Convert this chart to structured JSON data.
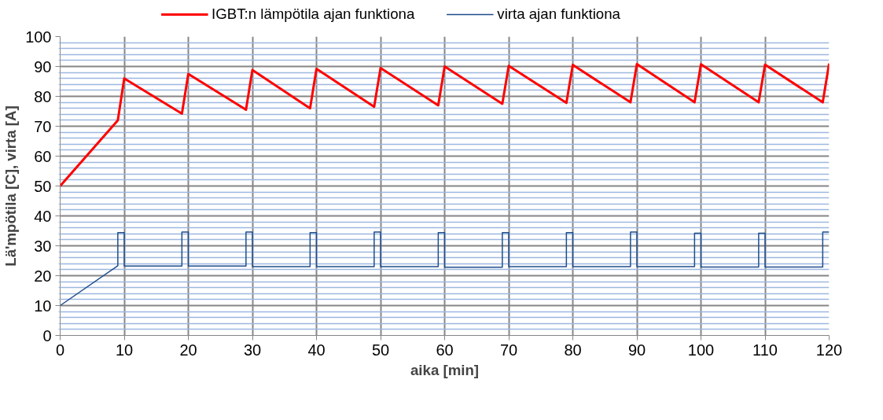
{
  "chart_data": {
    "type": "line",
    "xlabel": "aika [min]",
    "ylabel": "Lä'mpötila [C], virta [A]",
    "xlim": [
      0,
      120
    ],
    "ylim": [
      0,
      100
    ],
    "xticks": [
      0,
      10,
      20,
      30,
      40,
      50,
      60,
      70,
      80,
      90,
      100,
      110,
      120
    ],
    "yticks": [
      0,
      {
        "value": 2,
        "label": null
      },
      {
        "value": 4,
        "label": null
      },
      {
        "value": 6,
        "label": null
      },
      {
        "value": 8,
        "label": null
      },
      10,
      {
        "value": 12,
        "label": null
      },
      {
        "value": 14,
        "label": null
      },
      {
        "value": 16,
        "label": null
      },
      {
        "value": 18,
        "label": null
      },
      20,
      {
        "value": 22,
        "label": null
      },
      {
        "value": 24,
        "label": null
      },
      {
        "value": 26,
        "label": null
      },
      {
        "value": 28,
        "label": null
      },
      30,
      {
        "value": 32,
        "label": null
      },
      {
        "value": 34,
        "label": null
      },
      {
        "value": 36,
        "label": null
      },
      {
        "value": 38,
        "label": null
      },
      40,
      {
        "value": 42,
        "label": null
      },
      {
        "value": 44,
        "label": null
      },
      {
        "value": 46,
        "label": null
      },
      {
        "value": 48,
        "label": null
      },
      50,
      {
        "value": 52,
        "label": null
      },
      {
        "value": 54,
        "label": null
      },
      {
        "value": 56,
        "label": null
      },
      {
        "value": 58,
        "label": null
      },
      60,
      {
        "value": 62,
        "label": null
      },
      {
        "value": 64,
        "label": null
      },
      {
        "value": 66,
        "label": null
      },
      {
        "value": 68,
        "label": null
      },
      70,
      {
        "value": 72,
        "label": null
      },
      {
        "value": 74,
        "label": null
      },
      {
        "value": 76,
        "label": null
      },
      {
        "value": 78,
        "label": null
      },
      80,
      {
        "value": 82,
        "label": null
      },
      {
        "value": 84,
        "label": null
      },
      {
        "value": 86,
        "label": null
      },
      {
        "value": 88,
        "label": null
      },
      90,
      {
        "value": 92,
        "label": null
      },
      {
        "value": 94,
        "label": null
      },
      {
        "value": 96,
        "label": null
      },
      {
        "value": 98,
        "label": null
      },
      100
    ],
    "grid": true,
    "legend": "top",
    "marker": "none",
    "line_style": "solid",
    "series": [
      {
        "name": "IGBT:n lämpötila ajan funktiona",
        "color": "#ff0000",
        "x": [
          0,
          9,
          10,
          19,
          20,
          29,
          30,
          39,
          40,
          49,
          50,
          59,
          60,
          69,
          70,
          79,
          80,
          89,
          90,
          99,
          100,
          109,
          110,
          119,
          120
        ],
        "values": [
          50,
          72,
          86,
          74.2,
          87.5,
          75.5,
          88.8,
          76,
          89.2,
          76.5,
          89.5,
          77,
          90,
          77.5,
          90.2,
          77.8,
          90.5,
          78,
          90.8,
          78,
          90.7,
          78,
          90.6,
          78,
          91
        ]
      },
      {
        "name": "virta ajan funktiona",
        "color": "#1f4e8c",
        "x": [
          0,
          9,
          9,
          10,
          10,
          19,
          19,
          20,
          20,
          29,
          29,
          30,
          30,
          39,
          39,
          40,
          40,
          49,
          49,
          50,
          50,
          59,
          59,
          60,
          60,
          69,
          69,
          70,
          70,
          79,
          79,
          80,
          80,
          89,
          89,
          90,
          90,
          99,
          99,
          100,
          100,
          109,
          109,
          110,
          110,
          119,
          119,
          120
        ],
        "values": [
          10,
          23.3,
          34.4,
          34.4,
          23.2,
          23.2,
          34.6,
          34.6,
          23.2,
          23.2,
          34.6,
          34.6,
          23.0,
          23.0,
          34.4,
          34.4,
          23.0,
          23.0,
          34.6,
          34.6,
          23.0,
          23.0,
          34.4,
          34.4,
          22.8,
          22.8,
          34.4,
          34.4,
          23.0,
          23.0,
          34.4,
          34.4,
          23.0,
          23.0,
          34.6,
          34.6,
          23.0,
          23.0,
          34.2,
          34.2,
          22.9,
          22.9,
          34.2,
          34.2,
          22.9,
          22.9,
          34.6,
          34.6
        ]
      }
    ]
  }
}
